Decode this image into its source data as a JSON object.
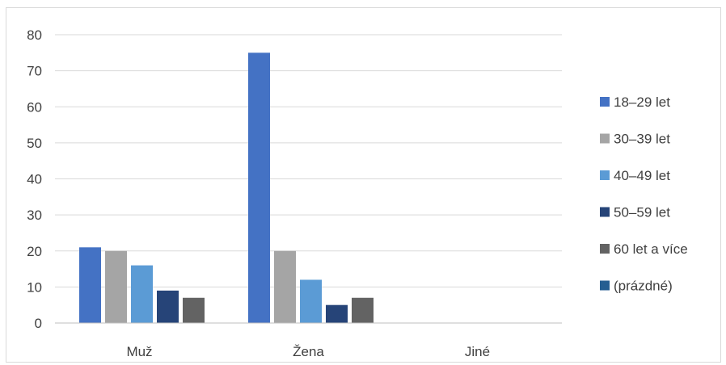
{
  "chart_data": {
    "type": "bar",
    "categories": [
      "Muž",
      "Žena",
      "Jiné"
    ],
    "series": [
      {
        "name": "18–29 let",
        "values": [
          21,
          75,
          0
        ],
        "color": "#4472C4"
      },
      {
        "name": "30–39 let",
        "values": [
          20,
          20,
          0
        ],
        "color": "#A5A5A5"
      },
      {
        "name": "40–49 let",
        "values": [
          16,
          12,
          0
        ],
        "color": "#5B9BD5"
      },
      {
        "name": "50–59 let",
        "values": [
          9,
          5,
          0
        ],
        "color": "#264478"
      },
      {
        "name": "60 let a více",
        "values": [
          7,
          7,
          0
        ],
        "color": "#636363"
      },
      {
        "name": "(prázdné)",
        "values": [
          0,
          0,
          0
        ],
        "color": "#255E91"
      }
    ],
    "yticks": [
      0,
      10,
      20,
      30,
      40,
      50,
      60,
      70,
      80
    ],
    "ylim": [
      0,
      80
    ],
    "grid": true,
    "legend_position": "right"
  }
}
